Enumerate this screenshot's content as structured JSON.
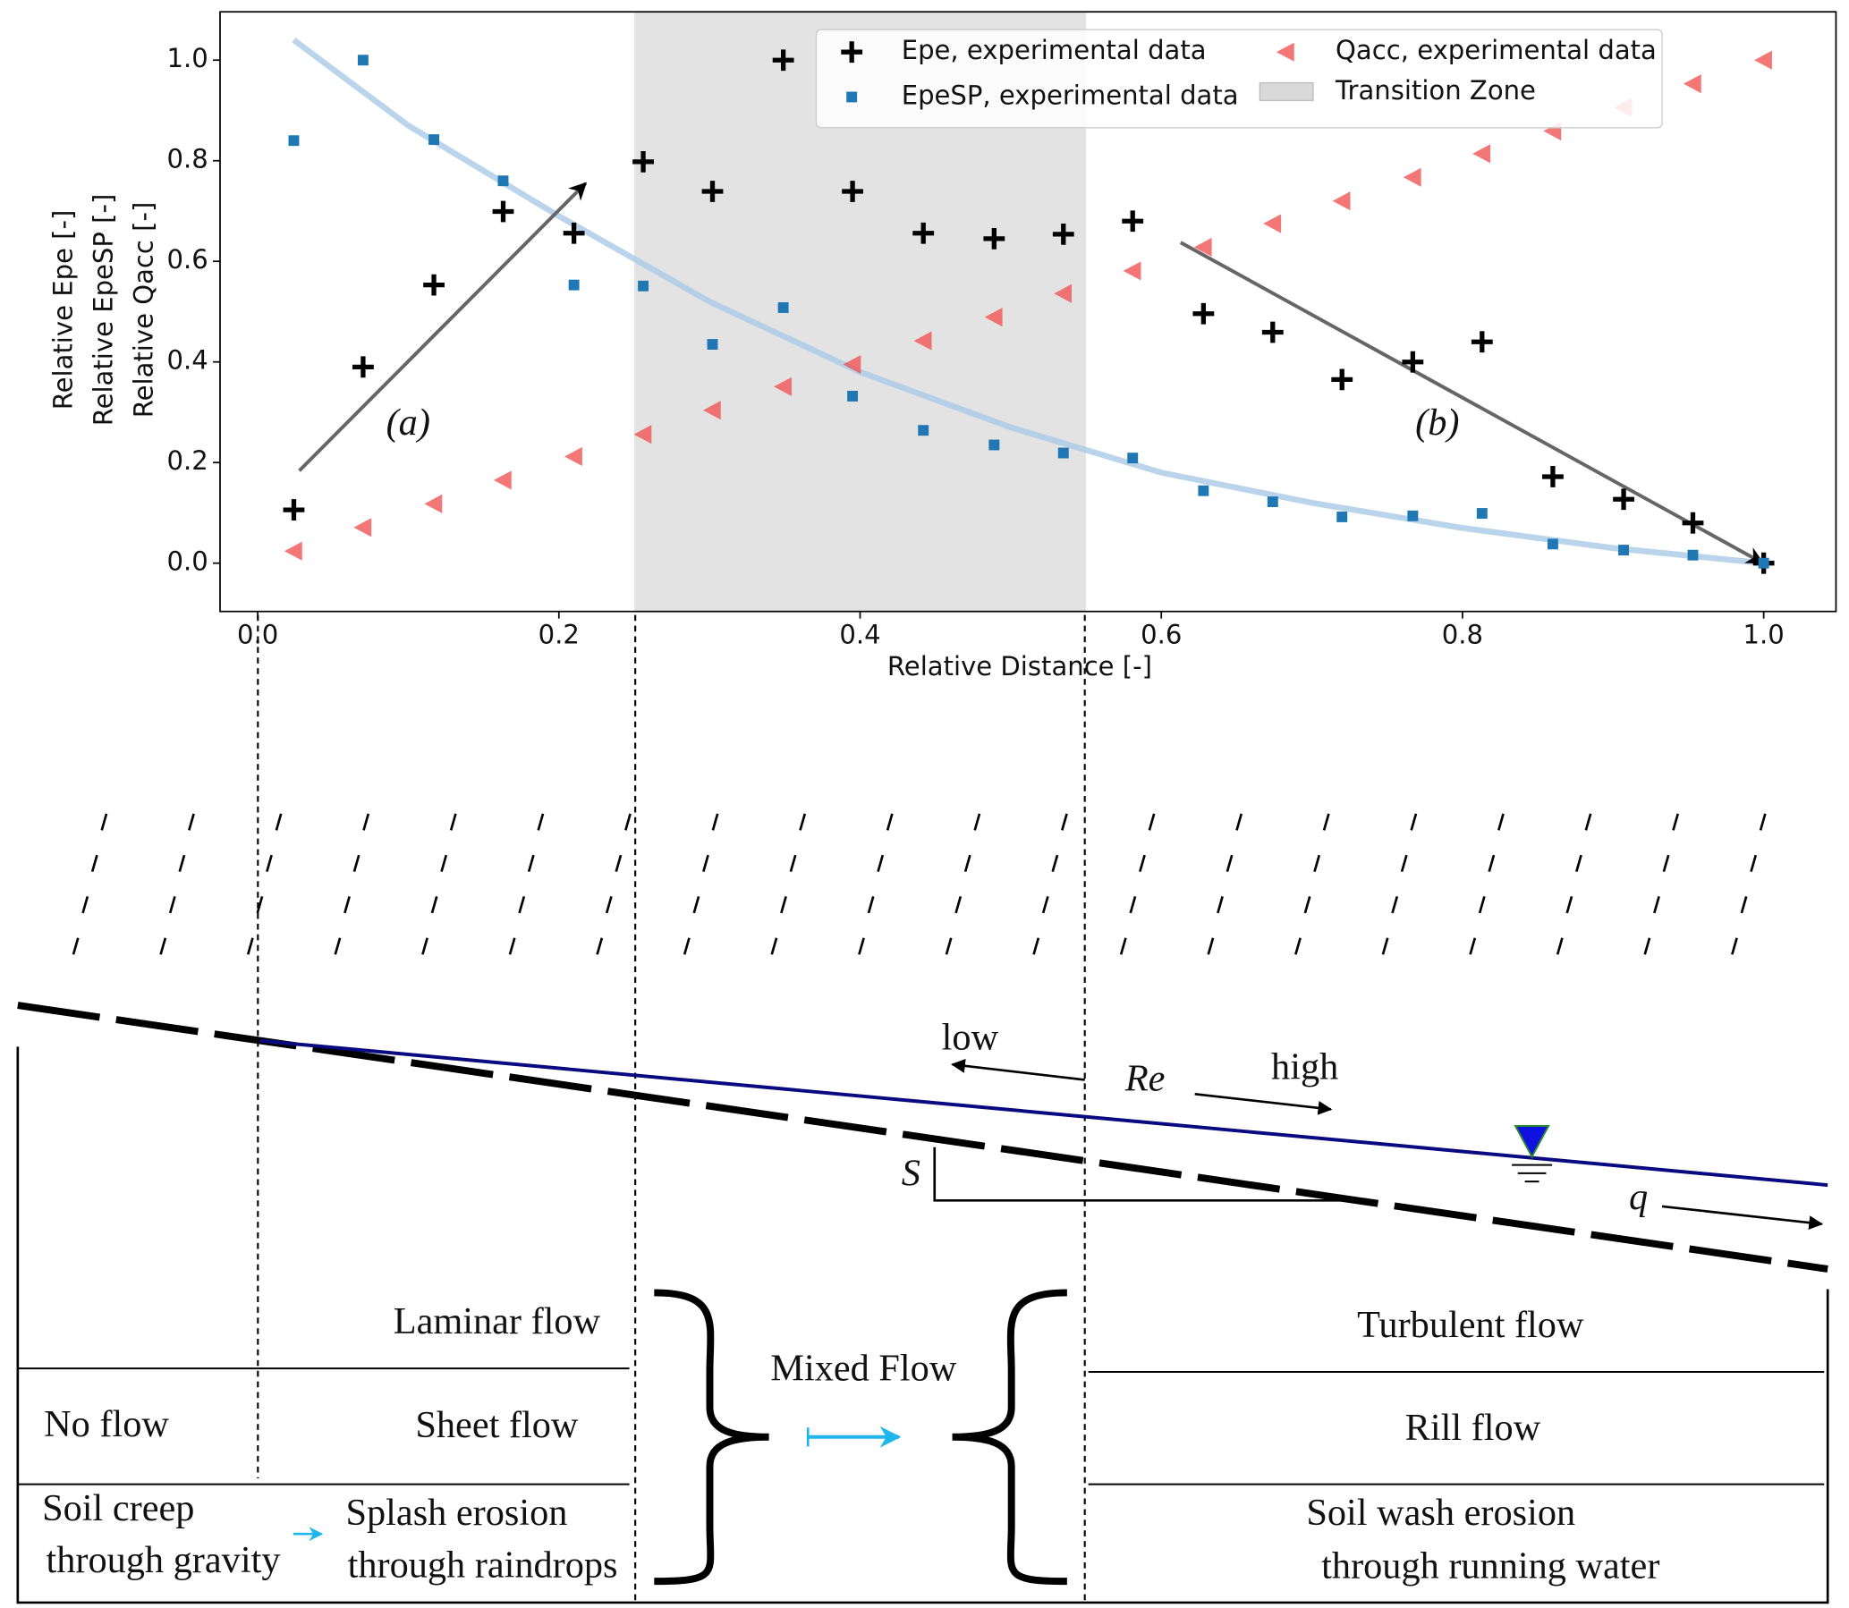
{
  "chart_data": {
    "type": "scatter",
    "x_label": "Relative Distance [-]",
    "y_labels": [
      "Relative Epe [-]",
      "Relative EpeSP [-]",
      "Relative Qacc [-]"
    ],
    "xlim": [
      -0.025,
      1.048
    ],
    "ylim": [
      -0.096,
      1.096
    ],
    "xticks": [
      {
        "value": 0,
        "label": "0.0"
      },
      0.2,
      0.4,
      0.6,
      0.8,
      {
        "value": 1,
        "label": "1.0"
      }
    ],
    "yticks": [
      {
        "value": 0,
        "label": "0.0"
      },
      0.2,
      0.4,
      0.6,
      0.8,
      {
        "value": 1,
        "label": "1.0"
      }
    ],
    "x": [
      0.024,
      0.07,
      0.117,
      0.163,
      0.21,
      0.256,
      0.302,
      0.349,
      0.395,
      0.442,
      0.489,
      0.535,
      0.581,
      0.628,
      0.674,
      0.72,
      0.767,
      0.813,
      0.86,
      0.907,
      0.953,
      1.0
    ],
    "series": [
      {
        "name": "Epe, experimental data",
        "color": "#000000",
        "marker": "plus",
        "values": [
          0.106,
          0.39,
          0.553,
          0.699,
          0.656,
          0.798,
          0.739,
          1.0,
          0.739,
          0.656,
          0.645,
          0.654,
          0.68,
          0.496,
          0.459,
          0.365,
          0.4,
          0.44,
          0.172,
          0.127,
          0.08,
          0.0
        ]
      },
      {
        "name": "EpeSP, experimental data",
        "color": "#1f77b4",
        "marker": "square",
        "values": [
          0.84,
          1.0,
          0.842,
          0.76,
          0.553,
          0.551,
          0.435,
          0.508,
          0.332,
          0.264,
          0.235,
          0.219,
          0.209,
          0.144,
          0.122,
          0.092,
          0.094,
          0.099,
          0.038,
          0.026,
          0.016,
          0.0
        ]
      },
      {
        "name": "Qacc, experimental data",
        "color": "#f05555",
        "marker": "triangle-left",
        "values": [
          0.024,
          0.071,
          0.118,
          0.165,
          0.212,
          0.256,
          0.304,
          0.351,
          0.395,
          0.442,
          0.489,
          0.536,
          0.581,
          0.628,
          0.675,
          0.72,
          0.767,
          0.814,
          0.859,
          0.906,
          0.953,
          1.0
        ]
      }
    ],
    "curve": {
      "color": "#a9c9e6",
      "x": [
        0.024,
        0.1,
        0.2,
        0.3,
        0.4,
        0.5,
        0.6,
        0.7,
        0.8,
        0.9,
        1.0
      ],
      "values": [
        1.04,
        0.87,
        0.69,
        0.52,
        0.38,
        0.27,
        0.18,
        0.12,
        0.07,
        0.03,
        0.0
      ]
    },
    "span": {
      "x0": 0.25,
      "x1": 0.55,
      "label": "Transition Zone",
      "color": "#d9d9d9"
    },
    "annotations": [
      "(a)",
      "(b)"
    ]
  },
  "diagram": {
    "texts": [
      "low",
      "Re",
      "high",
      "S",
      "q",
      "Laminar flow",
      "Mixed Flow",
      "Turbulent flow",
      "No flow",
      "Sheet flow",
      "Rill flow",
      "Soil creep",
      "through gravity",
      "Splash erosion",
      "through raindrops",
      "Soil wash erosion",
      "through running water"
    ]
  }
}
